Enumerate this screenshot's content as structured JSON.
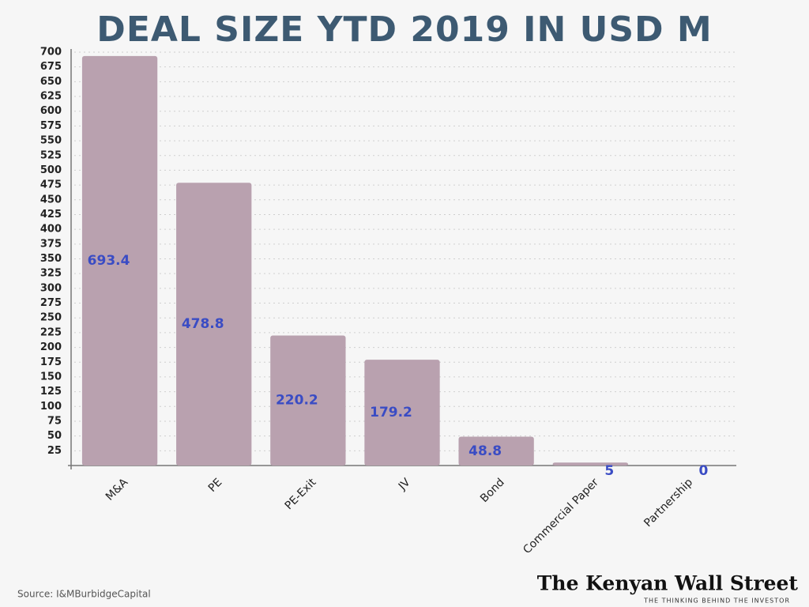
{
  "chart_data": {
    "type": "bar",
    "title": "DEAL SIZE YTD 2019 IN USD M",
    "categories": [
      "M&A",
      "PE",
      "PE-Exit",
      "JV",
      "Bond",
      "Commercial Paper",
      "Partnership"
    ],
    "values": [
      693.4,
      478.8,
      220.2,
      179.2,
      48.8,
      5,
      0
    ],
    "color": "#b9a1af",
    "label_color": "#3a4cc4",
    "ylim": [
      0,
      700
    ],
    "yticks": [
      25,
      50,
      75,
      100,
      125,
      150,
      175,
      200,
      225,
      250,
      275,
      300,
      325,
      350,
      375,
      400,
      425,
      450,
      475,
      500,
      525,
      550,
      575,
      600,
      625,
      650,
      675,
      700
    ],
    "grid": true,
    "source": "Source: I&MBurbidgeCapital",
    "brand": "The Kenyan Wall Street",
    "tagline": "THE THINKING BEHIND THE INVESTOR"
  }
}
